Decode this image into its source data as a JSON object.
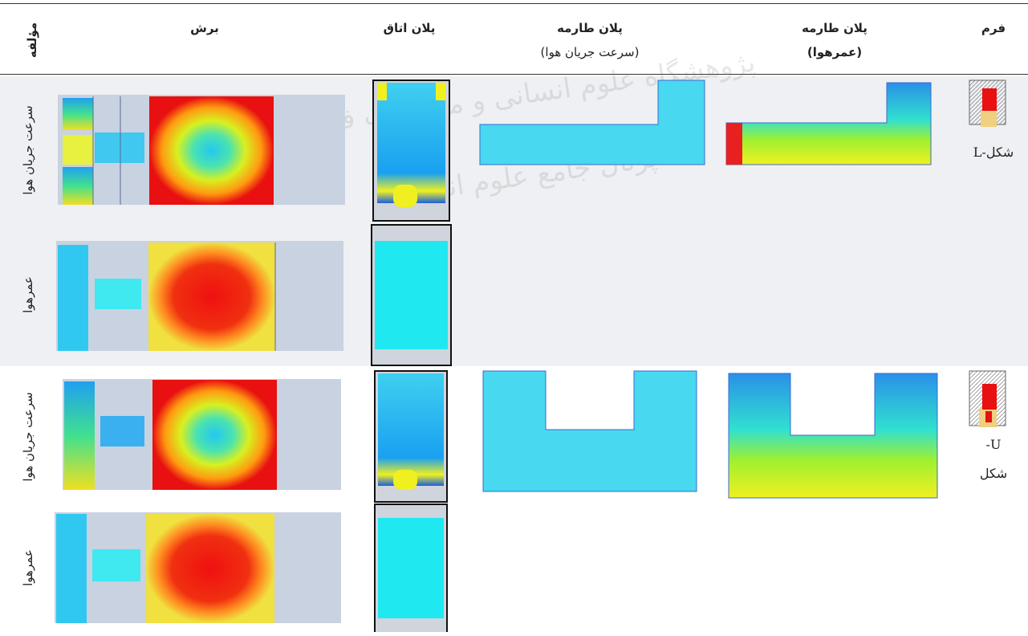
{
  "header": {
    "component": "مؤلفه",
    "section": "برش",
    "room_plan": "پلان اتاق",
    "porch_speed": [
      "پلان طارمه",
      "(سرعت جریان هوا)"
    ],
    "porch_age": [
      "پلان طارمه",
      "(عمرهوا)"
    ],
    "form": "فرم"
  },
  "groups": [
    {
      "form_label": [
        "L-شکل"
      ],
      "rows": [
        {
          "component": "سرعت جریان هوا"
        },
        {
          "component": "عمرهوا"
        }
      ]
    },
    {
      "form_label": [
        "-U",
        "شکل"
      ],
      "rows": [
        {
          "component": "سرعت جریان هوا"
        },
        {
          "component": "عمرهوا"
        }
      ]
    }
  ],
  "watermark": [
    "پژوهشگاه علوم انسانی و مطالعات فرهنگی",
    "پرتال جامع علوم انسانی"
  ]
}
